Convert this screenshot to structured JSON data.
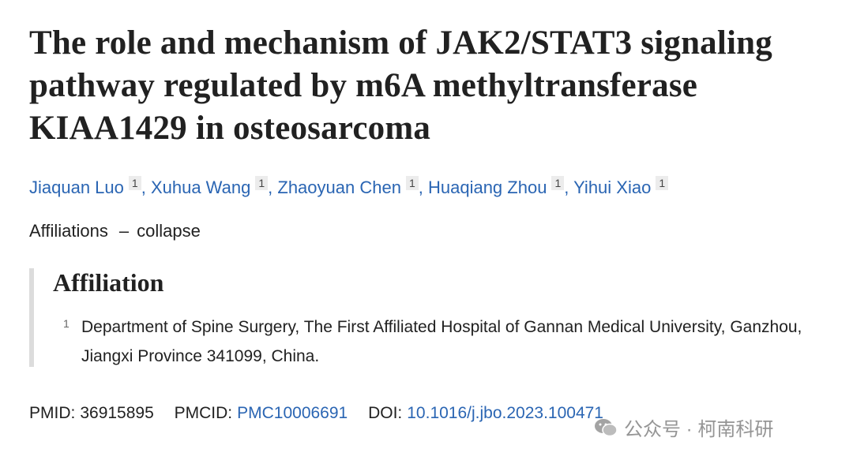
{
  "title": "The role and mechanism of JAK2/STAT3 signaling pathway regulated by m6A methyltransferase KIAA1429 in osteosarcoma",
  "authors": [
    {
      "name": "Jiaquan Luo",
      "affiliation": 1
    },
    {
      "name": "Xuhua Wang",
      "affiliation": 1
    },
    {
      "name": "Zhaoyuan Chen",
      "affiliation": 1
    },
    {
      "name": "Huaqiang Zhou",
      "affiliation": 1
    },
    {
      "name": "Yihui Xiao",
      "affiliation": 1
    }
  ],
  "author_separator": ",",
  "affiliations_toggle": {
    "label": "Affiliations",
    "separator": "–",
    "action": "collapse"
  },
  "affiliation_panel": {
    "heading": "Affiliation",
    "items": [
      {
        "number": 1,
        "text": "Department of Spine Surgery, The First Affiliated Hospital of Gannan Medical University, Ganzhou, Jiangxi Province 341099, China."
      }
    ]
  },
  "identifiers": [
    {
      "label": "PMID:",
      "value": "36915895"
    },
    {
      "label": "PMCID:",
      "value": "PMC10006691"
    },
    {
      "label": "DOI:",
      "value": "10.1016/j.jbo.2023.100471"
    }
  ],
  "watermark": "公众号 · 柯南科研"
}
